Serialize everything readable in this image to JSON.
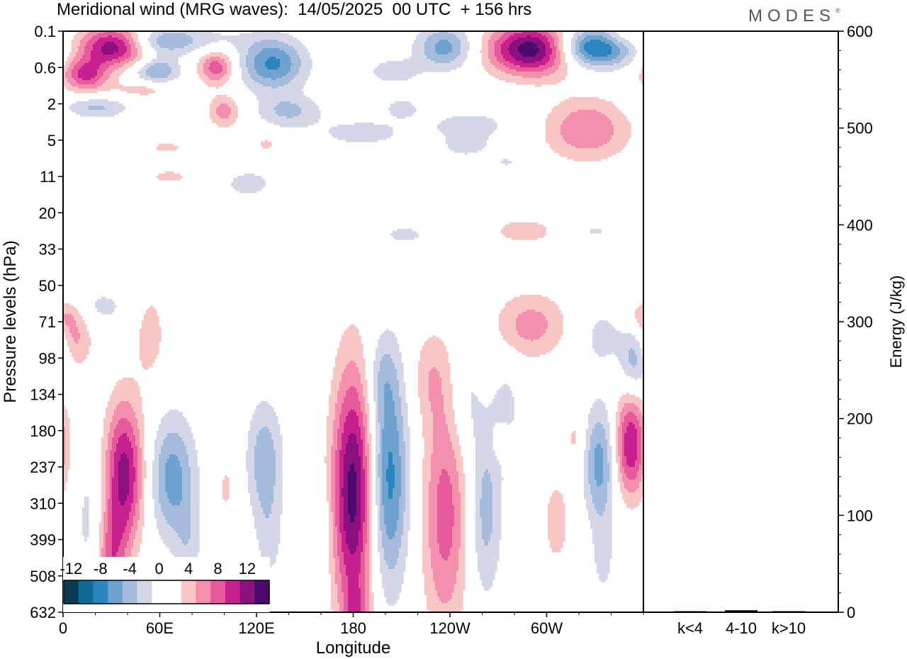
{
  "title": "Meridional wind (MRG waves):  14/05/2025  00 UTC  + 156 hrs",
  "brand": "MODES",
  "brand_mark": "®",
  "colors": {
    "neg": [
      "#0b3a52",
      "#116a95",
      "#2b86bf",
      "#6fa3cf",
      "#a6bcdc",
      "#d4d7e8"
    ],
    "pos": [
      "#f8c6c4",
      "#f490ae",
      "#e65b9c",
      "#c8218f",
      "#8c1180",
      "#4b0b6c"
    ],
    "frame": "#000000"
  },
  "chart_data": [
    {
      "type": "heatmap",
      "title": "Meridional wind (MRG waves):  14/05/2025  00 UTC  + 156 hrs",
      "xlabel": "Longitude",
      "ylabel": "Pressure levels (hPa)",
      "x_tick_labels": [
        "0",
        "60E",
        "120E",
        "180",
        "120W",
        "60W"
      ],
      "x_tick_degrees": [
        0,
        60,
        120,
        180,
        240,
        300
      ],
      "xlim_degrees": [
        0,
        360
      ],
      "y_levels": [
        "0.1",
        "0.6",
        "2",
        "5",
        "11",
        "20",
        "33",
        "50",
        "71",
        "98",
        "134",
        "180",
        "237",
        "310",
        "399",
        "508",
        "632"
      ],
      "y_direction": "pressure increasing downward",
      "colorbar": {
        "tick_labels": [
          "-12",
          "-8",
          "-4",
          "0",
          "4",
          "8",
          "12"
        ],
        "levels": [
          -12,
          -10,
          -8,
          -6,
          -4,
          -2,
          0,
          2,
          4,
          6,
          8,
          10,
          12
        ],
        "placement": "bottom-left inset"
      },
      "features": [
        {
          "sign": 1,
          "lon": 32,
          "level": 0.4,
          "half_width_lon": 22,
          "half_height_levels": 0.55,
          "amplitude": 12.5
        },
        {
          "sign": 1,
          "lon": 14,
          "level": 1.2,
          "half_width_lon": 14,
          "half_height_levels": 0.45,
          "amplitude": 8.5
        },
        {
          "sign": -1,
          "lon": 58,
          "level": 0.35,
          "half_width_lon": 22,
          "half_height_levels": 0.4,
          "amplitude": 4.5
        },
        {
          "sign": -1,
          "lon": 58,
          "level": 1.1,
          "half_width_lon": 14,
          "half_height_levels": 0.35,
          "amplitude": 6.5
        },
        {
          "sign": 1,
          "lon": 95,
          "level": 1.0,
          "half_width_lon": 11,
          "half_height_levels": 0.45,
          "amplitude": 7.5
        },
        {
          "sign": -1,
          "lon": 130,
          "level": 0.9,
          "half_width_lon": 20,
          "half_height_levels": 0.7,
          "amplitude": 8.5
        },
        {
          "sign": -1,
          "lon": 70,
          "level": 0.2,
          "half_width_lon": 45,
          "half_height_levels": 0.35,
          "amplitude": 3.0
        },
        {
          "sign": 1,
          "lon": 50,
          "level": 1.6,
          "half_width_lon": 20,
          "half_height_levels": 0.25,
          "amplitude": 3.0
        },
        {
          "sign": -1,
          "lon": 205,
          "level": 1.1,
          "half_width_lon": 16,
          "half_height_levels": 0.35,
          "amplitude": 3.5
        },
        {
          "sign": -1,
          "lon": 237,
          "level": 0.45,
          "half_width_lon": 18,
          "half_height_levels": 0.6,
          "amplitude": 7.0
        },
        {
          "sign": 1,
          "lon": 292,
          "level": 0.5,
          "half_width_lon": 28,
          "half_height_levels": 0.7,
          "amplitude": 14.0
        },
        {
          "sign": -1,
          "lon": 328,
          "level": 0.45,
          "half_width_lon": 24,
          "half_height_levels": 0.55,
          "amplitude": 12.5
        },
        {
          "sign": 1,
          "lon": 346,
          "level": 0.15,
          "half_width_lon": 14,
          "half_height_levels": 0.3,
          "amplitude": 3.0
        },
        {
          "sign": -1,
          "lon": 20,
          "level": 2.1,
          "half_width_lon": 20,
          "half_height_levels": 0.3,
          "amplitude": 4.5
        },
        {
          "sign": 1,
          "lon": 100,
          "level": 2.2,
          "half_width_lon": 10,
          "half_height_levels": 0.45,
          "amplitude": 5.0
        },
        {
          "sign": -1,
          "lon": 140,
          "level": 2.2,
          "half_width_lon": 20,
          "half_height_levels": 0.45,
          "amplitude": 4.5
        },
        {
          "sign": -1,
          "lon": 185,
          "level": 2.8,
          "half_width_lon": 28,
          "half_height_levels": 0.4,
          "amplitude": 3.0
        },
        {
          "sign": -1,
          "lon": 210,
          "level": 2.1,
          "half_width_lon": 14,
          "half_height_levels": 0.35,
          "amplitude": 2.5
        },
        {
          "sign": 1,
          "lon": 325,
          "level": 2.7,
          "half_width_lon": 26,
          "half_height_levels": 0.85,
          "amplitude": 6.0
        },
        {
          "sign": -1,
          "lon": 252,
          "level": 2.6,
          "half_width_lon": 28,
          "half_height_levels": 0.45,
          "amplitude": 3.0
        },
        {
          "sign": -1,
          "lon": 250,
          "level": 3.2,
          "half_width_lon": 16,
          "half_height_levels": 0.3,
          "amplitude": 2.5
        },
        {
          "sign": 1,
          "lon": 64,
          "level": 3.2,
          "half_width_lon": 14,
          "half_height_levels": 0.22,
          "amplitude": 2.5
        },
        {
          "sign": 1,
          "lon": 126,
          "level": 3.1,
          "half_width_lon": 8,
          "half_height_levels": 0.22,
          "amplitude": 2.5
        },
        {
          "sign": 1,
          "lon": 66,
          "level": 4.0,
          "half_width_lon": 16,
          "half_height_levels": 0.25,
          "amplitude": 2.5
        },
        {
          "sign": -1,
          "lon": 115,
          "level": 4.2,
          "half_width_lon": 18,
          "half_height_levels": 0.45,
          "amplitude": 2.8
        },
        {
          "sign": -1,
          "lon": 275,
          "level": 3.6,
          "half_width_lon": 10,
          "half_height_levels": 0.2,
          "amplitude": 2.2
        },
        {
          "sign": 1,
          "lon": 286,
          "level": 5.5,
          "half_width_lon": 22,
          "half_height_levels": 0.4,
          "amplitude": 3.0
        },
        {
          "sign": -1,
          "lon": 212,
          "level": 5.6,
          "half_width_lon": 16,
          "half_height_levels": 0.3,
          "amplitude": 2.6
        },
        {
          "sign": -1,
          "lon": 330,
          "level": 5.5,
          "half_width_lon": 10,
          "half_height_levels": 0.25,
          "amplitude": 2.3
        },
        {
          "sign": 1,
          "lon": 6,
          "level": 8.4,
          "half_width_lon": 12,
          "half_height_levels": 0.9,
          "amplitude": 5.0
        },
        {
          "sign": -1,
          "lon": 22,
          "level": 7.6,
          "half_width_lon": 22,
          "half_height_levels": 0.6,
          "amplitude": 2.6
        },
        {
          "sign": 1,
          "lon": 54,
          "level": 8.3,
          "half_width_lon": 10,
          "half_height_levels": 1.4,
          "amplitude": 3.0
        },
        {
          "sign": 1,
          "lon": 290,
          "level": 8.1,
          "half_width_lon": 22,
          "half_height_levels": 0.9,
          "amplitude": 5.0
        },
        {
          "sign": -1,
          "lon": 334,
          "level": 8.4,
          "half_width_lon": 14,
          "half_height_levels": 0.9,
          "amplitude": 2.6
        },
        {
          "sign": -1,
          "lon": 355,
          "level": 9.0,
          "half_width_lon": 9,
          "half_height_levels": 0.9,
          "amplitude": 6.0
        },
        {
          "sign": 1,
          "lon": 360,
          "level": 7.8,
          "half_width_lon": 10,
          "half_height_levels": 0.4,
          "amplitude": 3.0
        },
        {
          "sign": 1,
          "lon": 38,
          "level": 12.2,
          "half_width_lon": 12,
          "half_height_levels": 2.0,
          "amplitude": 11.0
        },
        {
          "sign": 1,
          "lon": 30,
          "level": 14.5,
          "half_width_lon": 9,
          "half_height_levels": 1.3,
          "amplitude": 6.0
        },
        {
          "sign": -1,
          "lon": 16,
          "level": 13.5,
          "half_width_lon": 9,
          "half_height_levels": 2.2,
          "amplitude": 2.6
        },
        {
          "sign": -1,
          "lon": 68,
          "level": 12.3,
          "half_width_lon": 14,
          "half_height_levels": 1.7,
          "amplitude": 7.0
        },
        {
          "sign": -1,
          "lon": 78,
          "level": 14.2,
          "half_width_lon": 8,
          "half_height_levels": 1.3,
          "amplitude": 2.6
        },
        {
          "sign": -1,
          "lon": 125,
          "level": 11.8,
          "half_width_lon": 11,
          "half_height_levels": 1.6,
          "amplitude": 5.5
        },
        {
          "sign": -1,
          "lon": 128,
          "level": 14.0,
          "half_width_lon": 9,
          "half_height_levels": 1.4,
          "amplitude": 2.5
        },
        {
          "sign": 1,
          "lon": 180,
          "level": 12.7,
          "half_width_lon": 13,
          "half_height_levels": 3.4,
          "amplitude": 13.0
        },
        {
          "sign": 1,
          "lon": 182,
          "level": 16.3,
          "half_width_lon": 8,
          "half_height_levels": 1.0,
          "amplitude": 5.0
        },
        {
          "sign": -1,
          "lon": 202,
          "level": 12.3,
          "half_width_lon": 12,
          "half_height_levels": 3.0,
          "amplitude": 9.0
        },
        {
          "sign": -1,
          "lon": 198,
          "level": 9.5,
          "half_width_lon": 10,
          "half_height_levels": 1.2,
          "amplitude": 2.6
        },
        {
          "sign": 1,
          "lon": 237,
          "level": 13.3,
          "half_width_lon": 14,
          "half_height_levels": 3.3,
          "amplitude": 7.0
        },
        {
          "sign": 1,
          "lon": 228,
          "level": 9.5,
          "half_width_lon": 12,
          "half_height_levels": 1.3,
          "amplitude": 3.0
        },
        {
          "sign": -1,
          "lon": 262,
          "level": 13.2,
          "half_width_lon": 10,
          "half_height_levels": 2.4,
          "amplitude": 5.0
        },
        {
          "sign": -1,
          "lon": 250,
          "level": 10.2,
          "half_width_lon": 10,
          "half_height_levels": 1.5,
          "amplitude": 2.6
        },
        {
          "sign": -1,
          "lon": 275,
          "level": 10.5,
          "half_width_lon": 9,
          "half_height_levels": 1.5,
          "amplitude": 2.6
        },
        {
          "sign": 1,
          "lon": 272,
          "level": 11.3,
          "half_width_lon": 6,
          "half_height_levels": 0.5,
          "amplitude": 3.0
        },
        {
          "sign": 1,
          "lon": 306,
          "level": 13.5,
          "half_width_lon": 10,
          "half_height_levels": 1.5,
          "amplitude": 2.8
        },
        {
          "sign": 1,
          "lon": 318,
          "level": 11.2,
          "half_width_lon": 6,
          "half_height_levels": 0.7,
          "amplitude": 2.6
        },
        {
          "sign": -1,
          "lon": 333,
          "level": 11.9,
          "half_width_lon": 10,
          "half_height_levels": 1.6,
          "amplitude": 7.0
        },
        {
          "sign": -1,
          "lon": 335,
          "level": 14.5,
          "half_width_lon": 7,
          "half_height_levels": 1.2,
          "amplitude": 2.6
        },
        {
          "sign": 1,
          "lon": 352,
          "level": 11.4,
          "half_width_lon": 10,
          "half_height_levels": 1.4,
          "amplitude": 10.0
        },
        {
          "sign": -1,
          "lon": 160,
          "level": 13.8,
          "half_width_lon": 6,
          "half_height_levels": 1.2,
          "amplitude": 2.5
        },
        {
          "sign": 1,
          "lon": 101,
          "level": 12.6,
          "half_width_lon": 5,
          "half_height_levels": 0.8,
          "amplitude": 2.5
        }
      ]
    },
    {
      "type": "bar",
      "ylabel": "Energy (J/kg)",
      "categories": [
        "k<4",
        "4-10",
        "k>10"
      ],
      "values": [
        0,
        2,
        0
      ],
      "ylim": [
        0,
        600
      ],
      "y_tick_labels": [
        "0",
        "100",
        "200",
        "300",
        "400",
        "500",
        "600"
      ],
      "y_axis_side": "right"
    }
  ]
}
